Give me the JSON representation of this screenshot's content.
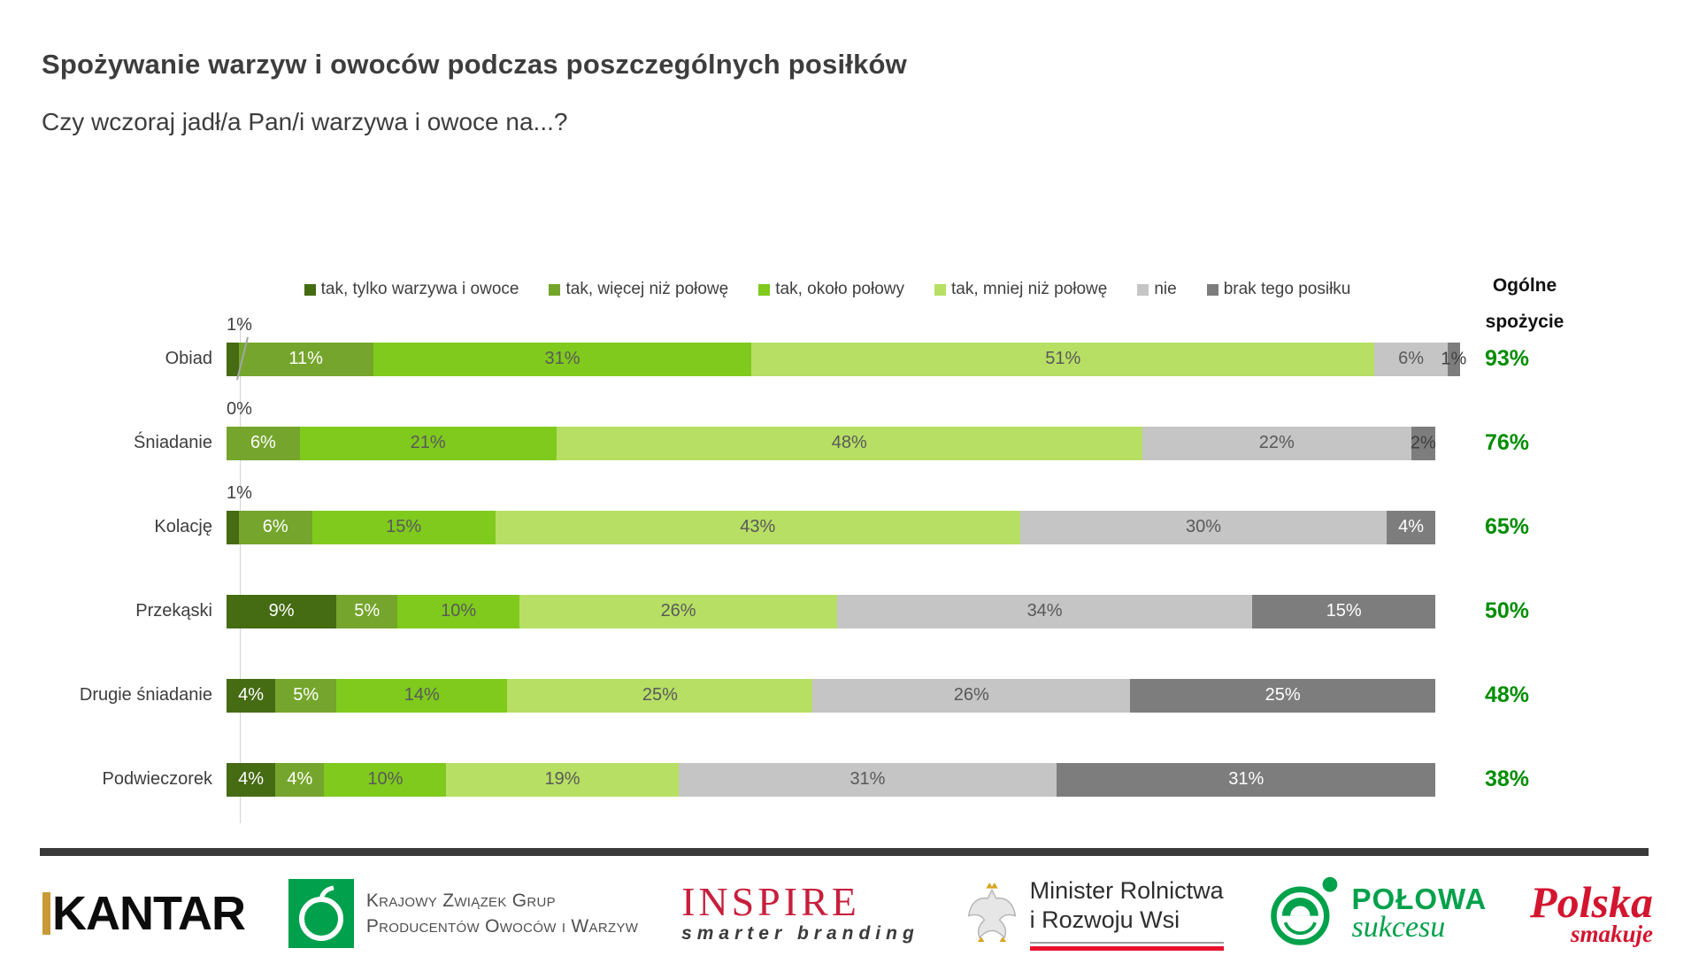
{
  "page": {
    "title": "Spożywanie warzyw i owoców podczas poszczególnych posiłków",
    "subtitle": "Czy wczoraj jadł/a Pan/i warzywa i owoce na...?"
  },
  "chart_data": {
    "type": "bar",
    "orientation": "horizontal",
    "stacked": true,
    "unit": "%",
    "legend_position": "top",
    "grid": false,
    "series": [
      "tak, tylko warzywa i owoce",
      "tak, więcej niż połowę",
      "tak, około połowy",
      "tak, mniej niż połowę",
      "nie",
      "brak tego posiłku"
    ],
    "series_colors": [
      "#456b13",
      "#75a52c",
      "#7fca1d",
      "#b7df64",
      "#c5c5c5",
      "#7d7d7d"
    ],
    "categories": [
      "Obiad",
      "Śniadanie",
      "Kolację",
      "Przekąski",
      "Drugie śniadanie",
      "Podwieczorek"
    ],
    "overall_header_line1": "Ogólne",
    "overall_header_line2": "spożycie",
    "overall_color": "#008d00",
    "rows": [
      {
        "category": "Obiad",
        "values": [
          1,
          11,
          31,
          51,
          6,
          1
        ],
        "labels": [
          "",
          "11%",
          "31%",
          "51%",
          "6%",
          "1%"
        ],
        "label_modes": [
          "none",
          "white",
          "dark",
          "dark",
          "dark",
          "overflow"
        ],
        "callout": "1%",
        "callout_line": true,
        "overall": "93%"
      },
      {
        "category": "Śniadanie",
        "values": [
          0,
          6,
          21,
          48,
          22,
          2
        ],
        "labels": [
          "",
          "6%",
          "21%",
          "48%",
          "22%",
          "2%"
        ],
        "label_modes": [
          "none",
          "white",
          "dark",
          "dark",
          "dark",
          "overflow"
        ],
        "callout": "0%",
        "callout_line": false,
        "overall": "76%"
      },
      {
        "category": "Kolację",
        "values": [
          1,
          6,
          15,
          43,
          30,
          4
        ],
        "labels": [
          "",
          "6%",
          "15%",
          "43%",
          "30%",
          "4%"
        ],
        "label_modes": [
          "none",
          "white",
          "dark",
          "dark",
          "dark",
          "white"
        ],
        "callout": "1%",
        "callout_line": false,
        "overall": "65%"
      },
      {
        "category": "Przekąski",
        "values": [
          9,
          5,
          10,
          26,
          34,
          15
        ],
        "labels": [
          "9%",
          "5%",
          "10%",
          "26%",
          "34%",
          "15%"
        ],
        "label_modes": [
          "white",
          "white",
          "dark",
          "dark",
          "dark",
          "white"
        ],
        "callout": null,
        "callout_line": false,
        "overall": "50%"
      },
      {
        "category": "Drugie śniadanie",
        "values": [
          4,
          5,
          14,
          25,
          26,
          25
        ],
        "labels": [
          "4%",
          "5%",
          "14%",
          "25%",
          "26%",
          "25%"
        ],
        "label_modes": [
          "white",
          "white",
          "dark",
          "dark",
          "dark",
          "white"
        ],
        "callout": null,
        "callout_line": false,
        "overall": "48%"
      },
      {
        "category": "Podwieczorek",
        "values": [
          4,
          4,
          10,
          19,
          31,
          31
        ],
        "labels": [
          "4%",
          "4%",
          "10%",
          "19%",
          "31%",
          "31%"
        ],
        "label_modes": [
          "white",
          "white",
          "dark",
          "dark",
          "dark",
          "white"
        ],
        "callout": null,
        "callout_line": false,
        "overall": "38%"
      }
    ]
  },
  "footer": {
    "kantar": "KANTAR",
    "kzg_line1": "Krajowy Związek Grup",
    "kzg_line2": "Producentów Owoców i Warzyw",
    "inspire": "INSPIRE",
    "inspire_tagline": "smarter branding",
    "minister_line1": "Minister Rolnictwa",
    "minister_line2": "i Rozwoju Wsi",
    "polowa_line1": "POŁOWA",
    "polowa_line2": "sukcesu",
    "polska_line1": "Polska",
    "polska_line2": "smakuje"
  }
}
